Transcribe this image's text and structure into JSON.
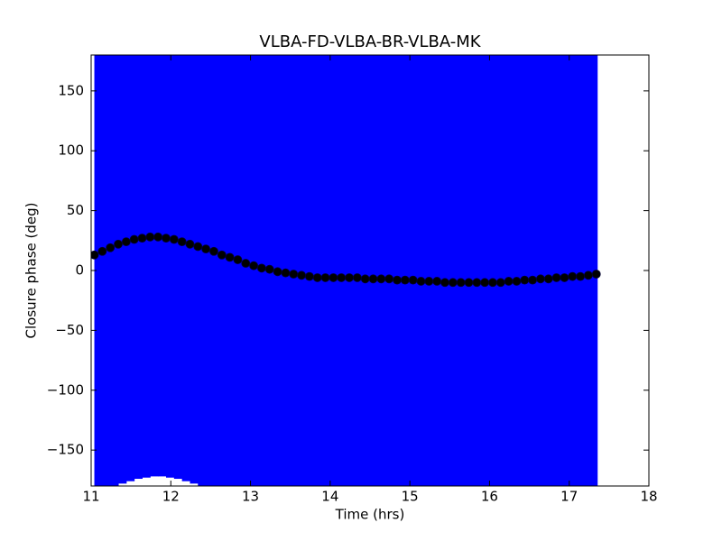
{
  "chart_data": {
    "type": "errorbar-scatter",
    "title": "VLBA-FD-VLBA-BR-VLBA-MK",
    "x_label": "Time (hrs)",
    "y_label": "Closure phase (deg)",
    "xlim": [
      11,
      18
    ],
    "xticks": [
      11,
      12,
      13,
      14,
      15,
      16,
      17,
      18
    ],
    "ylim": [
      -180,
      180
    ],
    "yticks": [
      {
        "value": -150,
        "label": "−150"
      },
      {
        "value": -100,
        "label": "−100"
      },
      {
        "value": -50,
        "label": "−50"
      },
      0,
      50,
      100,
      150
    ],
    "series": [
      {
        "color": "#000000",
        "error_color": "#0000ff",
        "x": [
          11.04,
          11.14,
          11.24,
          11.34,
          11.44,
          11.54,
          11.64,
          11.74,
          11.84,
          11.94,
          12.04,
          12.14,
          12.24,
          12.34,
          12.44,
          12.54,
          12.64,
          12.74,
          12.84,
          12.94,
          13.04,
          13.14,
          13.24,
          13.34,
          13.44,
          13.54,
          13.64,
          13.74,
          13.84,
          13.94,
          14.04,
          14.14,
          14.24,
          14.34,
          14.44,
          14.54,
          14.64,
          14.74,
          14.84,
          14.94,
          15.04,
          15.14,
          15.24,
          15.34,
          15.44,
          15.54,
          15.64,
          15.74,
          15.84,
          15.94,
          16.04,
          16.14,
          16.24,
          16.34,
          16.44,
          16.54,
          16.64,
          16.74,
          16.84,
          16.94,
          17.04,
          17.14,
          17.24,
          17.34
        ],
        "values": [
          13,
          16,
          19,
          22,
          24,
          26,
          27,
          28,
          28,
          27,
          26,
          24,
          22,
          20,
          18,
          16,
          13,
          11,
          9,
          6,
          4,
          2,
          1,
          -1,
          -2,
          -3,
          -4,
          -5,
          -6,
          -6,
          -6,
          -6,
          -6,
          -6,
          -7,
          -7,
          -7,
          -7,
          -8,
          -8,
          -8,
          -9,
          -9,
          -9,
          -10,
          -10,
          -10,
          -10,
          -10,
          -10,
          -10,
          -10,
          -9,
          -9,
          -8,
          -8,
          -7,
          -7,
          -6,
          -6,
          -5,
          -5,
          -4,
          -3
        ],
        "yerr": [
          200,
          200,
          200,
          200,
          200,
          200,
          200,
          200,
          200,
          200,
          200,
          200,
          200,
          200,
          200,
          200,
          200,
          200,
          200,
          200,
          200,
          200,
          200,
          200,
          200,
          200,
          200,
          200,
          200,
          200,
          200,
          200,
          200,
          200,
          200,
          200,
          200,
          200,
          200,
          200,
          200,
          200,
          200,
          200,
          200,
          200,
          200,
          200,
          200,
          200,
          200,
          200,
          200,
          200,
          200,
          200,
          200,
          200,
          200,
          200,
          200,
          200,
          200,
          200
        ]
      }
    ]
  }
}
